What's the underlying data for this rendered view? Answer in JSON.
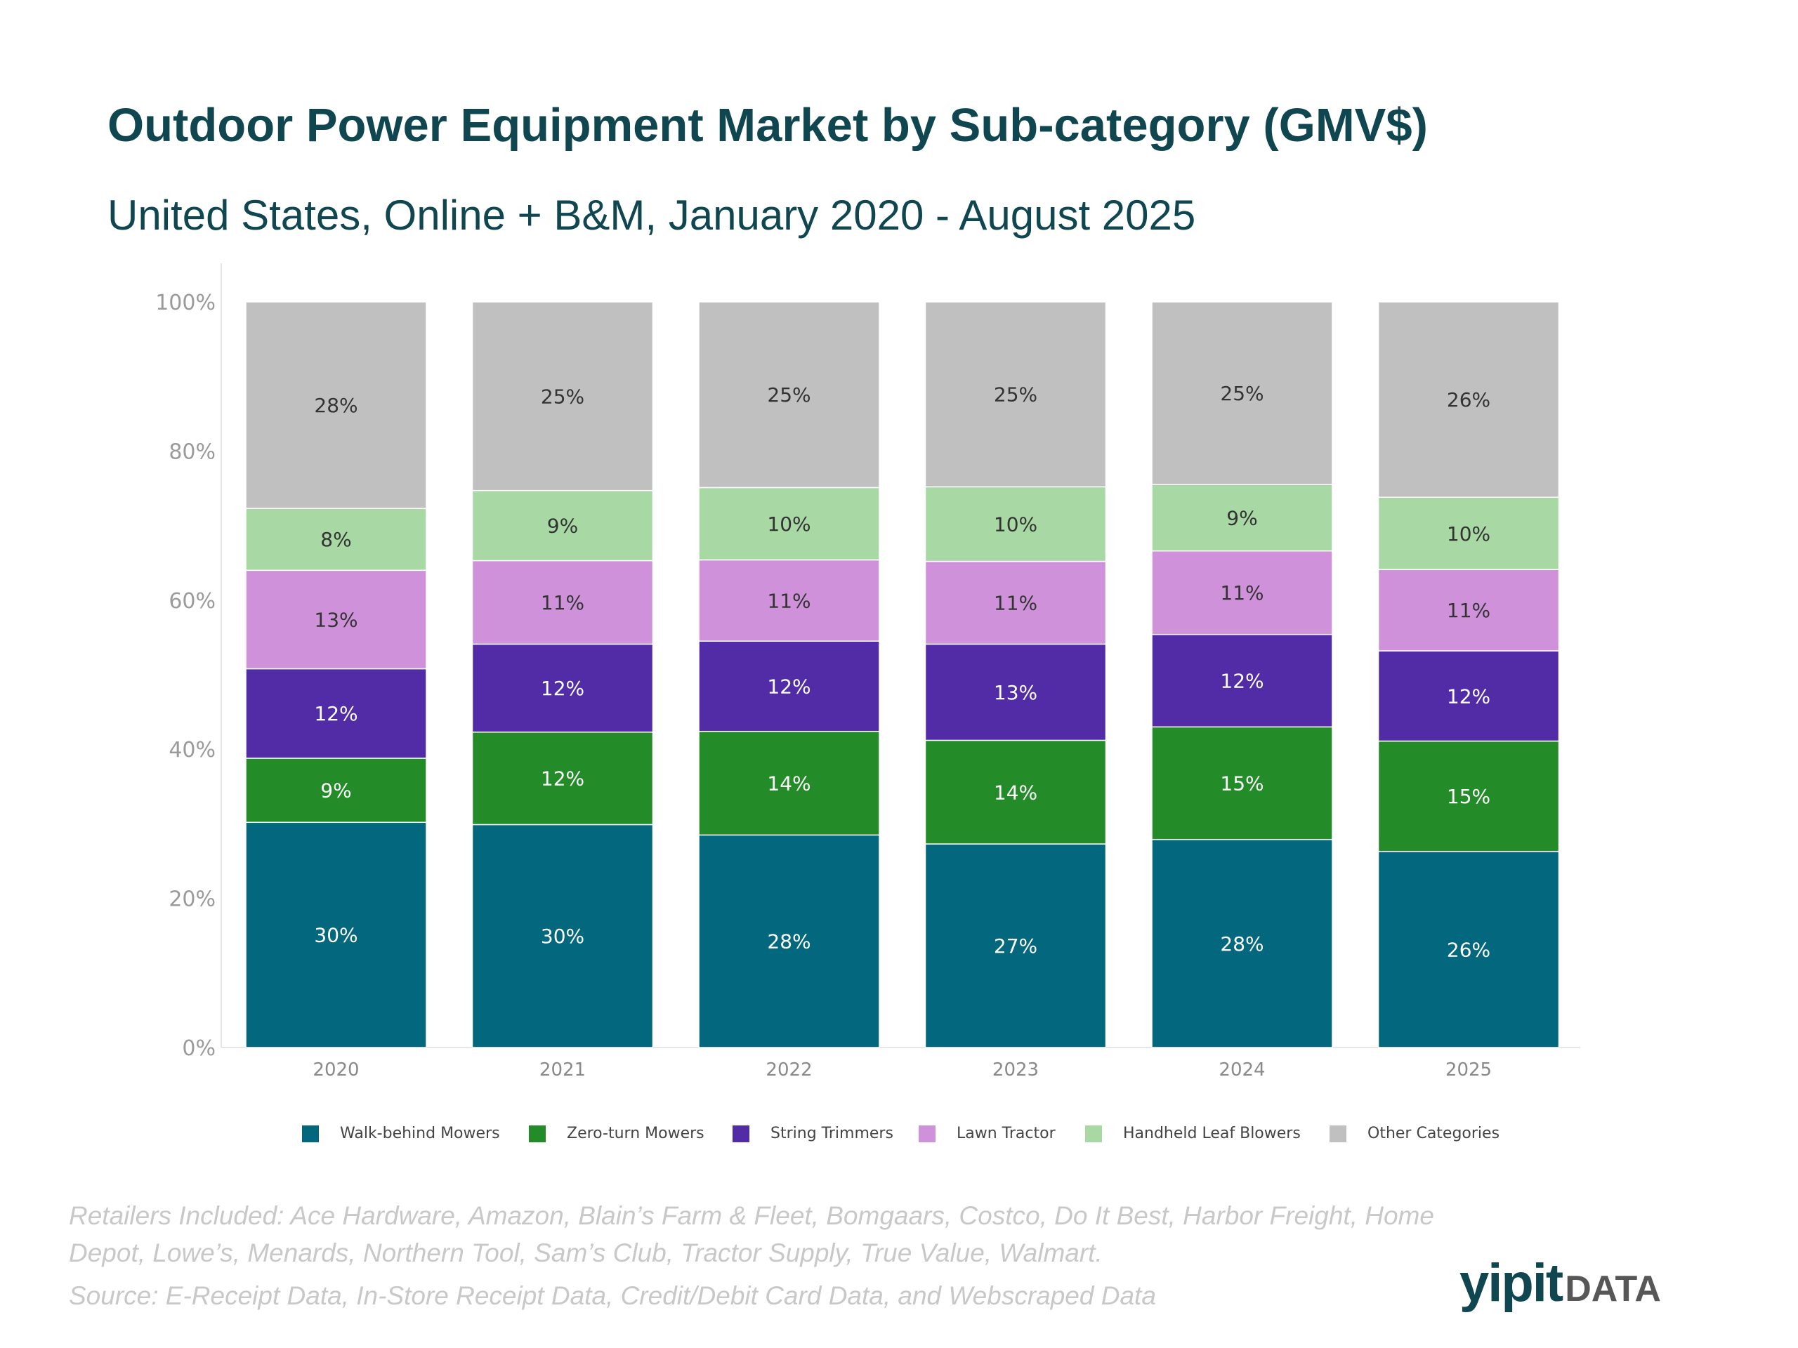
{
  "title": "Outdoor Power Equipment Market by Sub-category (GMV$)",
  "subtitle": "United States, Online + B&M, January 2020 - August 2025",
  "chart_data": {
    "type": "bar",
    "stacked": true,
    "title": "Outdoor Power Equipment Market by Sub-category (GMV$)",
    "categories": [
      "2020",
      "2021",
      "2022",
      "2023",
      "2024",
      "2025"
    ],
    "yticks": [
      "0%",
      "20%",
      "40%",
      "60%",
      "80%",
      "100%"
    ],
    "ylim": [
      0,
      100
    ],
    "series": [
      {
        "name": "Walk-behind Mowers",
        "color": "#03687d",
        "label_color": "#ffffff",
        "values": [
          30.2,
          29.9,
          28.5,
          27.3,
          27.9,
          26.3
        ],
        "labels": [
          "30%",
          "30%",
          "28%",
          "27%",
          "28%",
          "26%"
        ]
      },
      {
        "name": "Zero-turn Mowers",
        "color": "#238c28",
        "label_color": "#ffffff",
        "values": [
          8.6,
          12.4,
          13.9,
          13.9,
          15.1,
          14.8
        ],
        "labels": [
          "9%",
          "12%",
          "14%",
          "14%",
          "15%",
          "15%"
        ]
      },
      {
        "name": "String Trimmers",
        "color": "#522ca6",
        "label_color": "#ffffff",
        "values": [
          12.0,
          11.8,
          12.1,
          12.9,
          12.4,
          12.1
        ],
        "labels": [
          "12%",
          "12%",
          "12%",
          "13%",
          "12%",
          "12%"
        ]
      },
      {
        "name": "Lawn Tractor",
        "color": "#cf92da",
        "label_color": "#333333",
        "values": [
          13.2,
          11.2,
          10.9,
          11.1,
          11.2,
          10.9
        ],
        "labels": [
          "13%",
          "11%",
          "11%",
          "11%",
          "11%",
          "11%"
        ]
      },
      {
        "name": "Handheld Leaf Blowers",
        "color": "#a8d8a4",
        "label_color": "#333333",
        "values": [
          8.3,
          9.4,
          9.7,
          10.0,
          8.9,
          9.7
        ],
        "labels": [
          "8%",
          "9%",
          "10%",
          "10%",
          "9%",
          "10%"
        ]
      },
      {
        "name": "Other Categories",
        "color": "#c0c0c0",
        "label_color": "#333333",
        "values": [
          27.7,
          25.3,
          24.9,
          24.8,
          24.5,
          26.2
        ],
        "labels": [
          "28%",
          "25%",
          "25%",
          "25%",
          "25%",
          "26%"
        ]
      }
    ],
    "legend_position": "bottom-center"
  },
  "footer": {
    "retailers_line1": "Retailers Included: Ace Hardware, Amazon, Blain’s Farm & Fleet, Bomgaars, Costco, Do It Best, Harbor Freight, Home",
    "retailers_line2": "Depot, Lowe’s, Menards, Northern Tool, Sam’s Club, Tractor Supply, True Value, Walmart.",
    "source": "Source: E-Receipt Data, In-Store Receipt Data, Credit/Debit Card Data, and Webscraped Data"
  },
  "logo": {
    "yipit": "yipit",
    "data": "DATA"
  }
}
